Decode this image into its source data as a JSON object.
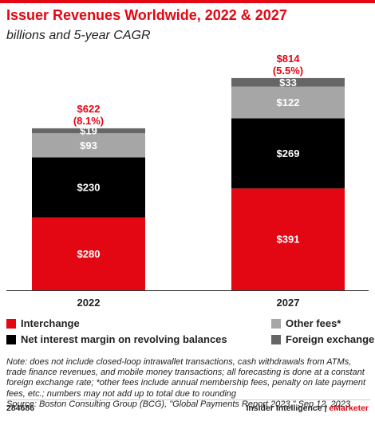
{
  "header": {
    "title": "Issuer Revenues Worldwide, 2022 & 2027",
    "subtitle": "billions and 5-year CAGR"
  },
  "chart_data": {
    "type": "bar",
    "stacked": true,
    "categories": [
      "2022",
      "2027"
    ],
    "series": [
      {
        "name": "Interchange",
        "color": "#e30613",
        "values": [
          280,
          391
        ],
        "labels": [
          "$280",
          "$391"
        ]
      },
      {
        "name": "Net interest margin on revolving balances",
        "color": "#000000",
        "values": [
          230,
          269
        ],
        "labels": [
          "$230",
          "$269"
        ]
      },
      {
        "name": "Other fees*",
        "color": "#a6a6a6",
        "values": [
          93,
          122
        ],
        "labels": [
          "$93",
          "$122"
        ]
      },
      {
        "name": "Foreign exchange",
        "color": "#666666",
        "values": [
          19,
          33
        ],
        "labels": [
          "$19",
          "$33"
        ]
      }
    ],
    "totals": [
      {
        "value": 622,
        "label": "$622",
        "cagr": "(8.1%)"
      },
      {
        "value": 814,
        "label": "$814",
        "cagr": "(5.5%)"
      }
    ],
    "legend_position": "bottom",
    "grid": false,
    "ylim": [
      0,
      830
    ]
  },
  "legend": {
    "interchange": "Interchange",
    "net_interest": "Net interest margin on revolving balances",
    "other_fees": "Other fees*",
    "foreign_exchange": "Foreign exchange"
  },
  "colors": {
    "accent": "#e30613",
    "interchange": "#e30613",
    "net_interest": "#000000",
    "other_fees": "#a6a6a6",
    "foreign_exchange": "#666666"
  },
  "footer": {
    "note": "Note: does not include closed-loop intrawallet transactions, cash withdrawals from ATMs, trade finance revenues, and mobile money transactions; all forecasting is done at a constant foreign exchange rate; *other fees include annual membership fees, penalty on late payment fees, etc.; numbers may not add up to total due to rounding",
    "source": "Source: Boston Consulting Group (BCG), \"Global Payments Report 2023,\" Sep 12, 2023",
    "chart_id": "284686",
    "brand_main": "Insider Intelligence",
    "brand_sep": " | ",
    "brand_accent": "eMarketer"
  }
}
